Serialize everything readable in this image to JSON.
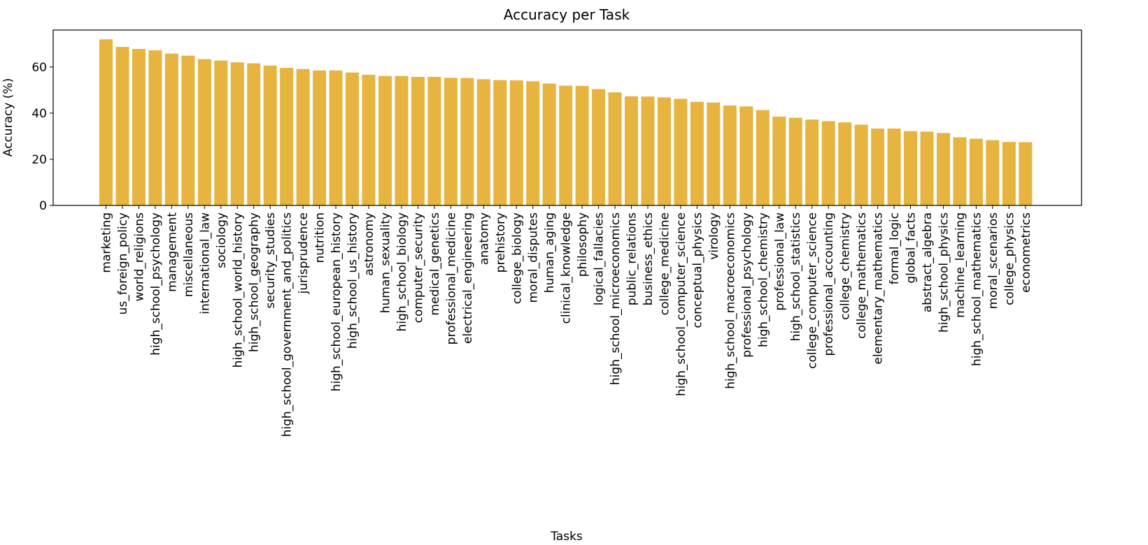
{
  "chart_data": {
    "type": "bar",
    "title": "Accuracy per Task",
    "xlabel": "Tasks",
    "ylabel": "Accuracy (%)",
    "ylim": [
      0,
      76
    ],
    "yticks": [
      0,
      20,
      40,
      60
    ],
    "grid": false,
    "bar_color": "#E6B43F",
    "categories": [
      "marketing",
      "us_foreign_policy",
      "world_religions",
      "high_school_psychology",
      "management",
      "miscellaneous",
      "international_law",
      "sociology",
      "high_school_world_history",
      "high_school_geography",
      "security_studies",
      "high_school_government_and_politics",
      "jurisprudence",
      "nutrition",
      "high_school_european_history",
      "high_school_us_history",
      "astronomy",
      "human_sexuality",
      "high_school_biology",
      "computer_security",
      "medical_genetics",
      "professional_medicine",
      "electrical_engineering",
      "anatomy",
      "prehistory",
      "college_biology",
      "moral_disputes",
      "human_aging",
      "clinical_knowledge",
      "philosophy",
      "logical_fallacies",
      "high_school_microeconomics",
      "public_relations",
      "business_ethics",
      "college_medicine",
      "high_school_computer_science",
      "conceptual_physics",
      "virology",
      "high_school_macroeconomics",
      "professional_psychology",
      "high_school_chemistry",
      "professional_law",
      "high_school_statistics",
      "college_computer_science",
      "professional_accounting",
      "college_chemistry",
      "college_mathematics",
      "elementary_mathematics",
      "formal_logic",
      "global_facts",
      "abstract_algebra",
      "high_school_physics",
      "machine_learning",
      "high_school_mathematics",
      "moral_scenarios",
      "college_physics",
      "econometrics"
    ],
    "values": [
      72.0,
      68.7,
      67.8,
      67.2,
      65.8,
      64.9,
      63.4,
      62.8,
      62.0,
      61.6,
      60.6,
      59.6,
      59.1,
      58.5,
      58.5,
      57.6,
      56.6,
      56.1,
      56.1,
      55.7,
      55.7,
      55.3,
      55.2,
      54.7,
      54.3,
      54.2,
      53.8,
      52.8,
      51.9,
      51.8,
      50.4,
      49.0,
      47.3,
      47.2,
      46.8,
      46.2,
      44.9,
      44.6,
      43.3,
      42.9,
      41.3,
      38.5,
      38.0,
      37.2,
      36.5,
      36.0,
      35.0,
      33.3,
      33.3,
      32.2,
      32.0,
      31.4,
      29.5,
      28.9,
      28.3,
      27.5,
      27.4
    ]
  }
}
